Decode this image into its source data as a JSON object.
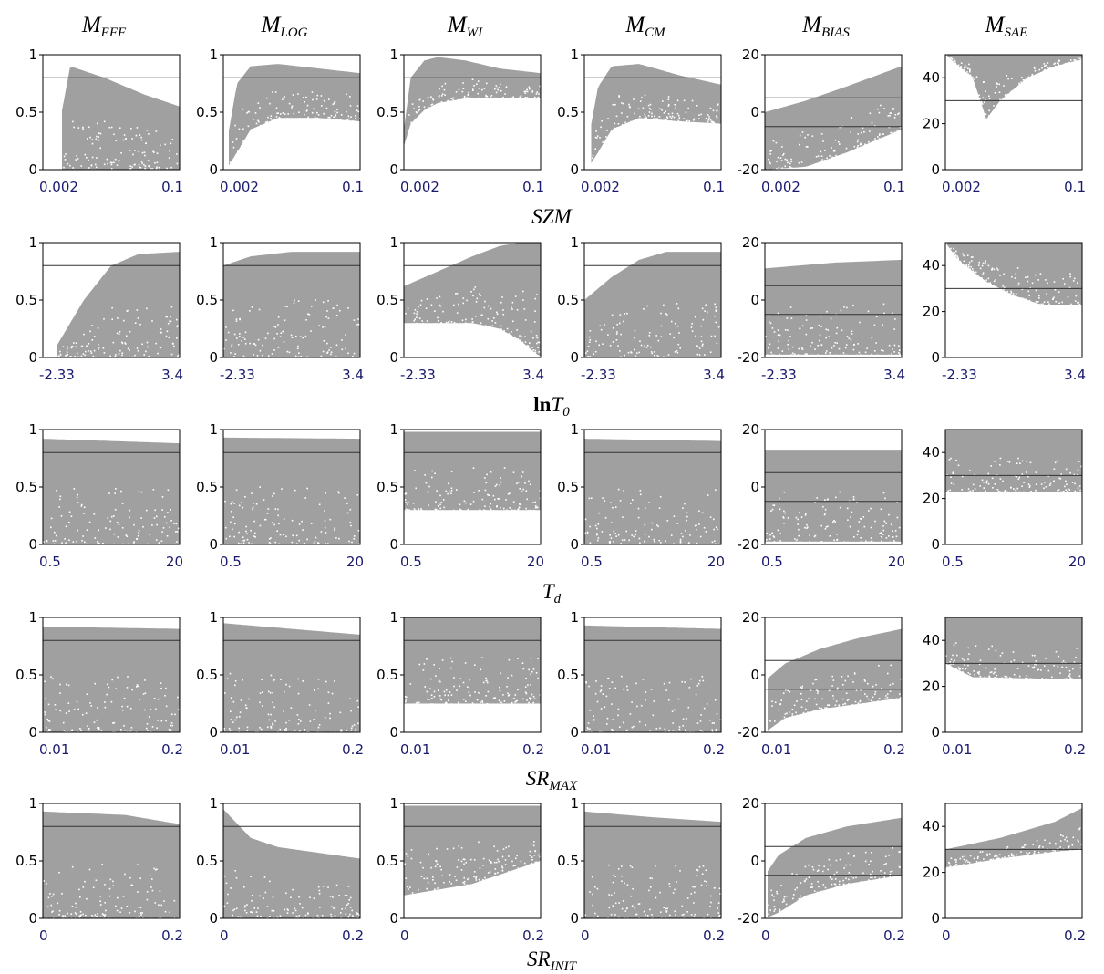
{
  "chart_data": {
    "type": "scatter",
    "description_layout": "grid",
    "colors": {
      "points": "#a0a0a0",
      "threshold_line": "#333333",
      "axes": "#000000",
      "xtick_text": "#1a1a6e"
    },
    "columns": [
      {
        "id": "eff",
        "label": {
          "main": "M",
          "sub": "EFF"
        },
        "ylim": [
          0,
          1
        ],
        "yticks": [
          "0",
          "0.5",
          "1"
        ],
        "thresholds": [
          0.8
        ]
      },
      {
        "id": "log",
        "label": {
          "main": "M",
          "sub": "LOG"
        },
        "ylim": [
          0,
          1
        ],
        "yticks": [
          "0",
          "0.5",
          "1"
        ],
        "thresholds": [
          0.8
        ]
      },
      {
        "id": "wi",
        "label": {
          "main": "M",
          "sub": "WI"
        },
        "ylim": [
          0,
          1
        ],
        "yticks": [
          "0",
          "0.5",
          "1"
        ],
        "thresholds": [
          0.8
        ]
      },
      {
        "id": "cm",
        "label": {
          "main": "M",
          "sub": "CM"
        },
        "ylim": [
          0,
          1
        ],
        "yticks": [
          "0",
          "0.5",
          "1"
        ],
        "thresholds": [
          0.8
        ]
      },
      {
        "id": "bias",
        "label": {
          "main": "M",
          "sub": "BIAS"
        },
        "ylim": [
          -20,
          20
        ],
        "yticks": [
          "-20",
          "0",
          "20"
        ],
        "thresholds": [
          5,
          -5
        ]
      },
      {
        "id": "sae",
        "label": {
          "main": "M",
          "sub": "SAE"
        },
        "ylim": [
          0,
          50
        ],
        "yticks": [
          "0",
          "20",
          "40"
        ],
        "thresholds": [
          30
        ]
      }
    ],
    "rows": [
      {
        "id": "szm",
        "label": {
          "main": "SZM",
          "sub": ""
        },
        "xlim": [
          0.002,
          0.1
        ],
        "xticks": [
          "0.002",
          "0.1"
        ]
      },
      {
        "id": "lnt0",
        "label": {
          "prefix": "ln",
          "main": "T",
          "sub": "0"
        },
        "xlim": [
          -2.33,
          3.4
        ],
        "xticks": [
          "-2.33",
          "3.4"
        ]
      },
      {
        "id": "td",
        "label": {
          "main": "T",
          "sub": "d"
        },
        "xlim": [
          0.5,
          20
        ],
        "xticks": [
          "0.5",
          "20"
        ]
      },
      {
        "id": "srmax",
        "label": {
          "main": "SR",
          "sub": "MAX"
        },
        "xlim": [
          0.01,
          0.2
        ],
        "xticks": [
          "0.01",
          "0.2"
        ]
      },
      {
        "id": "srinit",
        "label": {
          "main": "SR",
          "sub": "INIT"
        },
        "xlim": [
          0,
          0.2
        ],
        "xticks": [
          "0",
          "0.2"
        ]
      }
    ],
    "bands": [
      [
        {
          "x": [
            0,
            0.06,
            0.2,
            0.45,
            0.75,
            1
          ],
          "lower": [
            null,
            0.0,
            0.0,
            0.0,
            0.0,
            0.0
          ],
          "upper": [
            null,
            0.0,
            0.9,
            0.8,
            0.65,
            0.55
          ],
          "startX": 0.14
        },
        {
          "x": [
            0,
            0.02,
            0.1,
            0.2,
            0.4,
            0.7,
            1
          ],
          "lower": [
            0,
            0.0,
            0.15,
            0.35,
            0.45,
            0.45,
            0.42
          ],
          "upper": [
            0,
            0.2,
            0.75,
            0.9,
            0.92,
            0.88,
            0.84
          ],
          "startX": 0.04
        },
        {
          "x": [
            0,
            0.05,
            0.15,
            0.25,
            0.45,
            0.7,
            1
          ],
          "lower": [
            0.2,
            0.4,
            0.52,
            0.58,
            0.62,
            0.62,
            0.62
          ],
          "upper": [
            0.35,
            0.8,
            0.95,
            0.98,
            0.95,
            0.88,
            0.84
          ],
          "startX": 0.0
        },
        {
          "x": [
            0,
            0.02,
            0.1,
            0.2,
            0.4,
            0.7,
            1
          ],
          "lower": [
            0,
            0.0,
            0.15,
            0.35,
            0.45,
            0.42,
            0.4
          ],
          "upper": [
            0,
            0.2,
            0.72,
            0.9,
            0.92,
            0.82,
            0.74
          ],
          "startX": 0.05
        },
        {
          "x": [
            0,
            0.3,
            0.6,
            1
          ],
          "lower": [
            -20,
            -19,
            -14,
            -6
          ],
          "upper": [
            0,
            4,
            9,
            16
          ],
          "startX": 0.0
        },
        {
          "x": [
            0,
            0.2,
            0.3,
            0.4,
            0.6,
            0.8,
            1
          ],
          "lower": [
            50,
            40,
            22,
            30,
            40,
            45,
            48
          ],
          "upper": [
            50,
            50,
            50,
            50,
            50,
            50,
            50
          ],
          "startX": 0.0
        }
      ],
      [
        {
          "x": [
            0,
            0.1,
            0.3,
            0.5,
            0.7,
            1
          ],
          "lower": [
            0,
            0,
            0,
            0,
            0,
            0
          ],
          "upper": [
            0,
            0.1,
            0.5,
            0.8,
            0.9,
            0.92
          ],
          "startX": 0.1
        },
        {
          "x": [
            0,
            0.2,
            0.5,
            1
          ],
          "lower": [
            0,
            0,
            0,
            0
          ],
          "upper": [
            0.8,
            0.88,
            0.92,
            0.92
          ],
          "startX": 0.0
        },
        {
          "x": [
            0,
            0.25,
            0.5,
            0.7,
            0.85,
            1
          ],
          "lower": [
            0.3,
            0.3,
            0.3,
            0.25,
            0.15,
            0.0
          ],
          "upper": [
            0.62,
            0.75,
            0.88,
            0.97,
            1.0,
            1.0
          ],
          "startX": 0.0
        },
        {
          "x": [
            0,
            0.2,
            0.4,
            0.6,
            1
          ],
          "lower": [
            0,
            0,
            0,
            0,
            0
          ],
          "upper": [
            0.5,
            0.7,
            0.85,
            0.92,
            0.92
          ],
          "startX": 0.0
        },
        {
          "x": [
            0,
            0.5,
            1
          ],
          "lower": [
            -19,
            -19,
            -19
          ],
          "upper": [
            11,
            13,
            14
          ],
          "startX": 0.0
        },
        {
          "x": [
            0,
            0.1,
            0.3,
            0.5,
            0.7,
            1
          ],
          "lower": [
            50,
            42,
            33,
            27,
            23,
            23
          ],
          "upper": [
            50,
            50,
            50,
            50,
            50,
            50
          ],
          "startX": 0.0
        }
      ],
      [
        {
          "x": [
            0,
            1
          ],
          "lower": [
            0,
            0
          ],
          "upper": [
            0.92,
            0.88
          ],
          "startX": 0.0
        },
        {
          "x": [
            0,
            1
          ],
          "lower": [
            0,
            0
          ],
          "upper": [
            0.93,
            0.92
          ],
          "startX": 0.0
        },
        {
          "x": [
            0,
            1
          ],
          "lower": [
            0.3,
            0.3
          ],
          "upper": [
            0.98,
            0.98
          ],
          "startX": 0.0
        },
        {
          "x": [
            0,
            1
          ],
          "lower": [
            0,
            0
          ],
          "upper": [
            0.92,
            0.9
          ],
          "startX": 0.0
        },
        {
          "x": [
            0,
            1
          ],
          "lower": [
            -19,
            -19
          ],
          "upper": [
            13,
            13
          ],
          "startX": 0.0
        },
        {
          "x": [
            0,
            1
          ],
          "lower": [
            23,
            23
          ],
          "upper": [
            50,
            50
          ],
          "startX": 0.0
        }
      ],
      [
        {
          "x": [
            0,
            1
          ],
          "lower": [
            0,
            0
          ],
          "upper": [
            0.92,
            0.9
          ],
          "startX": 0.0
        },
        {
          "x": [
            0,
            1
          ],
          "lower": [
            0,
            0
          ],
          "upper": [
            0.95,
            0.85
          ],
          "startX": 0.0
        },
        {
          "x": [
            0,
            1
          ],
          "lower": [
            0.25,
            0.25
          ],
          "upper": [
            1.0,
            1.0
          ],
          "startX": 0.0
        },
        {
          "x": [
            0,
            1
          ],
          "lower": [
            0,
            0
          ],
          "upper": [
            0.93,
            0.9
          ],
          "startX": 0.0
        },
        {
          "x": [
            0,
            0.15,
            0.4,
            0.7,
            1
          ],
          "lower": [
            -20,
            -15,
            -12,
            -10,
            -8
          ],
          "upper": [
            -2,
            4,
            9,
            13,
            16
          ],
          "startX": 0.02
        },
        {
          "x": [
            0,
            0.2,
            1
          ],
          "lower": [
            30,
            24,
            23
          ],
          "upper": [
            50,
            50,
            50
          ],
          "startX": 0.0
        }
      ],
      [
        {
          "x": [
            0,
            0.6,
            1
          ],
          "lower": [
            0,
            0,
            0
          ],
          "upper": [
            0.93,
            0.9,
            0.82
          ],
          "startX": 0.0
        },
        {
          "x": [
            0,
            0.08,
            0.2,
            0.4,
            0.7,
            1
          ],
          "lower": [
            0,
            0,
            0,
            0,
            0,
            0
          ],
          "upper": [
            0.95,
            0.85,
            0.7,
            0.62,
            0.57,
            0.52
          ],
          "startX": 0.0
        },
        {
          "x": [
            0,
            0.5,
            1
          ],
          "lower": [
            0.2,
            0.3,
            0.5
          ],
          "upper": [
            0.98,
            0.98,
            0.98
          ],
          "startX": 0.0
        },
        {
          "x": [
            0,
            0.5,
            1
          ],
          "lower": [
            0,
            0,
            0
          ],
          "upper": [
            0.93,
            0.88,
            0.84
          ],
          "startX": 0.0
        },
        {
          "x": [
            0,
            0.1,
            0.3,
            0.6,
            1
          ],
          "lower": [
            -20,
            -18,
            -12,
            -8,
            -5
          ],
          "upper": [
            -5,
            2,
            8,
            12,
            15
          ],
          "startX": 0.02
        },
        {
          "x": [
            0,
            0.4,
            0.8,
            1
          ],
          "lower": [
            22,
            26,
            29,
            30
          ],
          "upper": [
            30,
            35,
            42,
            48
          ],
          "startX": 0.0
        }
      ]
    ]
  }
}
